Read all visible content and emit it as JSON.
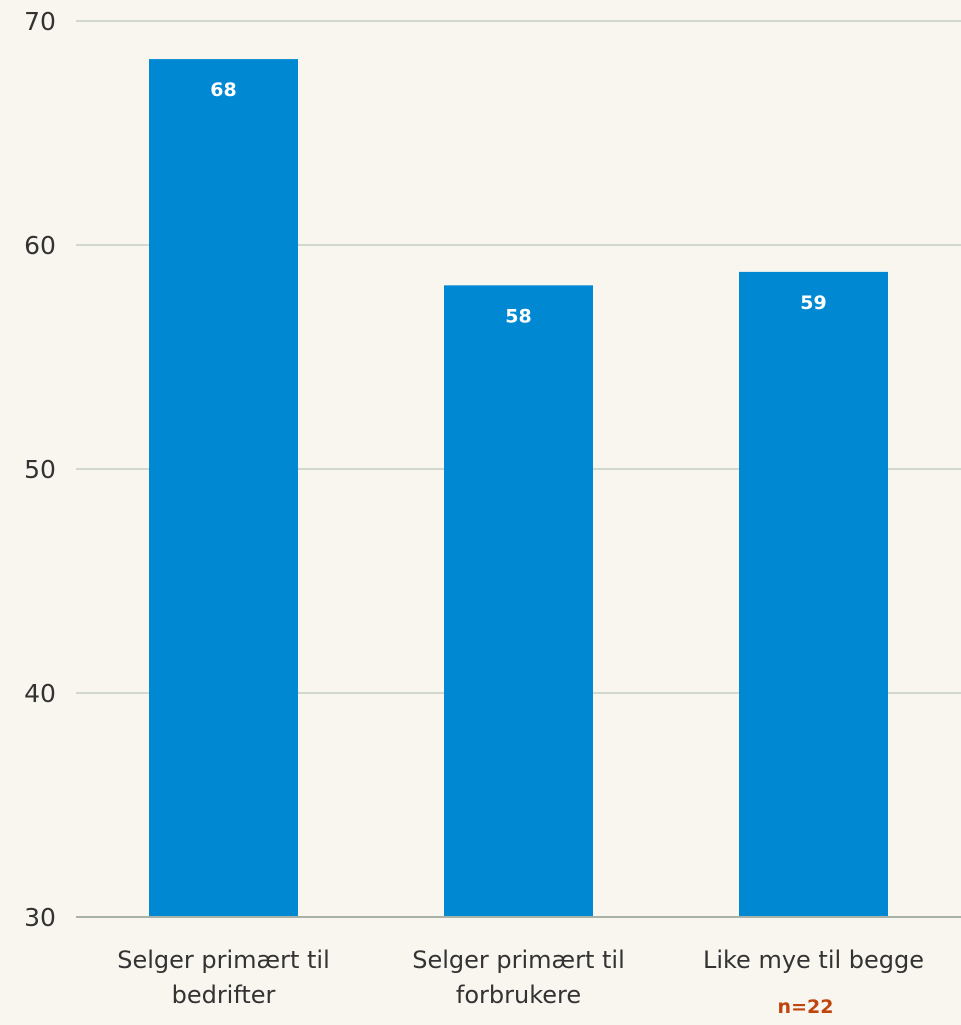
{
  "chart_data": {
    "type": "bar",
    "categories": [
      [
        "Selger primært til",
        "bedrifter"
      ],
      [
        "Selger primært til",
        "forbrukere"
      ],
      [
        "Like mye til begge"
      ]
    ],
    "values": [
      68.3,
      58.2,
      58.8
    ],
    "data_labels": [
      "68",
      "58",
      "59"
    ],
    "ylim": [
      30,
      70
    ],
    "yticks": [
      30,
      40,
      50,
      60,
      70
    ],
    "ytick_labels": [
      "30",
      "40",
      "50",
      "60",
      "70"
    ],
    "grid": true,
    "legend": "none",
    "title": "",
    "xlabel": "",
    "ylabel": "",
    "note": "n=22"
  },
  "colors": {
    "background": "#f9f6ef",
    "bar": "#0089d2",
    "grid": "#c6cdc2",
    "axis": "#a8b2a8",
    "text": "#333333",
    "data_label": "#ffffff",
    "note": "#c0440e"
  }
}
